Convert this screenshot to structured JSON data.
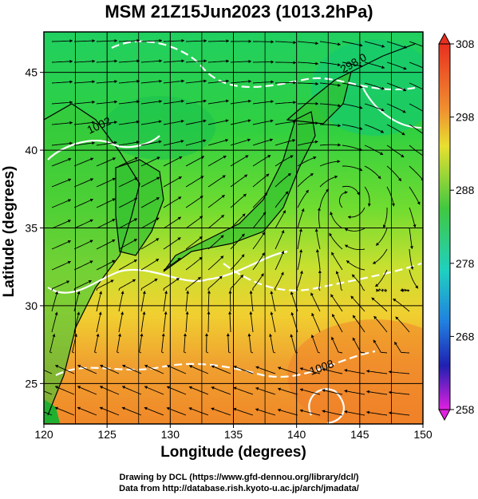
{
  "title": "MSM 21Z15Jun2023 (1013.2hPa)",
  "xlabel": "Longitude (degrees)",
  "ylabel": "Latitude  (degrees)",
  "x_ticks": [
    "120",
    "125",
    "130",
    "135",
    "140",
    "145",
    "150"
  ],
  "y_ticks": [
    "25",
    "30",
    "35",
    "40",
    "45"
  ],
  "colorbar_ticks": [
    "308",
    "298",
    "288",
    "278",
    "268",
    "258"
  ],
  "contour_labels": [
    "1002",
    "298.0",
    "1008"
  ],
  "credits": {
    "line1": "Drawing by DCL (https://www.gfd-dennou.org/library/dcl/)",
    "line2": "Data from http://database.rish.kyoto-u.ac.jp/arch/jmadata/"
  },
  "colors": {
    "warm": "#f0a030",
    "mid": "#c8e030",
    "cool": "#38d048",
    "contour": "#ffffff",
    "streamline": "#000000"
  },
  "chart_data": {
    "type": "heatmap",
    "variable": "temperature at 1013.2hPa (K) with wind streamlines",
    "x_range": [
      120,
      150
    ],
    "y_range": [
      22.4,
      47.6
    ],
    "colorbar_range": [
      258,
      308
    ],
    "colorbar_ticks": [
      308,
      298,
      288,
      278,
      268,
      258
    ]
  }
}
